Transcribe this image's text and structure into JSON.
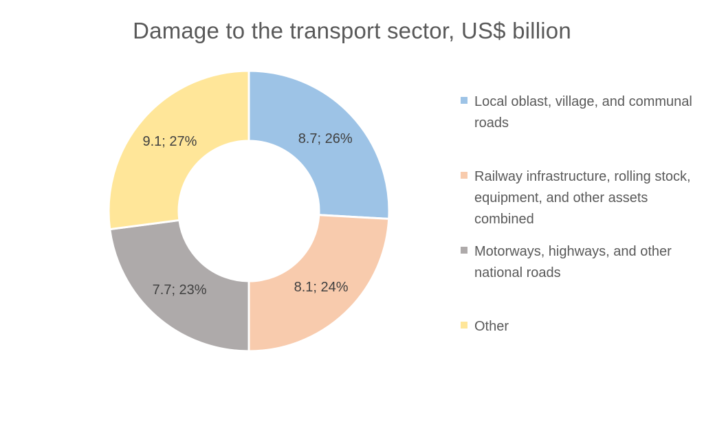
{
  "chart_data": {
    "type": "pie",
    "title": "Damage to the transport sector, US$ billion",
    "donut": true,
    "legend_position": "right",
    "slices": [
      {
        "name": "Local oblast, village, and communal roads",
        "value": 8.7,
        "percent": 26,
        "label": "8.7; 26%",
        "color": "#9DC3E6"
      },
      {
        "name": "Railway infrastructure, rolling stock, equipment, and other assets combined",
        "value": 8.1,
        "percent": 24,
        "label": "8.1; 24%",
        "color": "#F8CBAD"
      },
      {
        "name": "Motorways, highways, and other national roads",
        "value": 7.7,
        "percent": 23,
        "label": "7.7; 23%",
        "color": "#AEAAAA"
      },
      {
        "name": "Other",
        "value": 9.1,
        "percent": 27,
        "label": "9.1; 27%",
        "color": "#FFE699"
      }
    ]
  }
}
